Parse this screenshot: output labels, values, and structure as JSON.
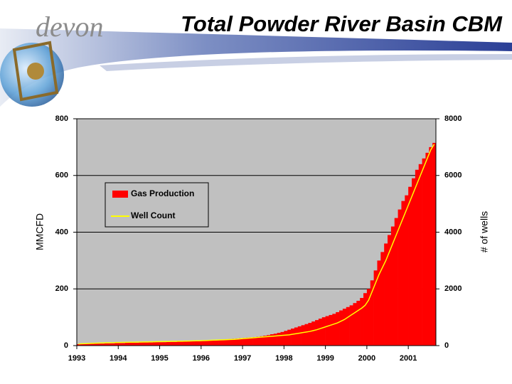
{
  "logo": "devon",
  "chart_data": {
    "type": "bar",
    "title": "Total Powder River Basin CBM",
    "ylabel": "MMCFD",
    "y2label": "# of wells",
    "categories": [
      "1993",
      null,
      null,
      null,
      null,
      null,
      null,
      null,
      null,
      null,
      null,
      null,
      "1994",
      null,
      null,
      null,
      null,
      null,
      null,
      null,
      null,
      null,
      null,
      null,
      "1995",
      null,
      null,
      null,
      null,
      null,
      null,
      null,
      null,
      null,
      null,
      null,
      "1996",
      null,
      null,
      null,
      null,
      null,
      null,
      null,
      null,
      null,
      null,
      null,
      "1997",
      null,
      null,
      null,
      null,
      null,
      null,
      null,
      null,
      null,
      null,
      null,
      "1998",
      null,
      null,
      null,
      null,
      null,
      null,
      null,
      null,
      null,
      null,
      null,
      "1999",
      null,
      null,
      null,
      null,
      null,
      null,
      null,
      null,
      null,
      null,
      null,
      "2000",
      null,
      null,
      null,
      null,
      null,
      null,
      null,
      null,
      null,
      null,
      null,
      "2001",
      null,
      null,
      null,
      null,
      null,
      null,
      null
    ],
    "series": [
      {
        "name": "Gas Production",
        "color": "#ff0000",
        "type": "bar",
        "values": [
          5,
          5,
          6,
          6,
          6,
          7,
          7,
          7,
          8,
          8,
          8,
          9,
          9,
          9,
          10,
          10,
          10,
          10,
          11,
          11,
          11,
          11,
          12,
          12,
          12,
          12,
          13,
          13,
          13,
          14,
          14,
          14,
          15,
          15,
          16,
          16,
          17,
          18,
          18,
          19,
          19,
          20,
          21,
          22,
          23,
          24,
          25,
          26,
          27,
          28,
          29,
          30,
          31,
          33,
          35,
          37,
          40,
          42,
          45,
          48,
          52,
          56,
          60,
          64,
          68,
          72,
          76,
          80,
          85,
          90,
          95,
          100,
          104,
          108,
          112,
          118,
          124,
          130,
          136,
          142,
          150,
          158,
          168,
          185,
          200,
          230,
          265,
          300,
          330,
          360,
          390,
          420,
          450,
          480,
          510,
          530,
          560,
          590,
          620,
          640,
          660,
          680,
          700,
          715
        ]
      },
      {
        "name": "Well Count",
        "color": "#ffff00",
        "type": "line",
        "axis": "y2",
        "values": [
          60,
          65,
          70,
          75,
          80,
          85,
          90,
          95,
          100,
          100,
          105,
          110,
          110,
          115,
          115,
          120,
          120,
          125,
          125,
          130,
          130,
          135,
          135,
          140,
          140,
          145,
          145,
          150,
          150,
          155,
          155,
          160,
          160,
          165,
          170,
          170,
          175,
          180,
          185,
          190,
          195,
          200,
          205,
          210,
          215,
          220,
          230,
          240,
          250,
          260,
          270,
          280,
          290,
          300,
          310,
          320,
          330,
          340,
          350,
          360,
          370,
          380,
          400,
          420,
          440,
          460,
          480,
          500,
          530,
          560,
          600,
          640,
          680,
          720,
          760,
          800,
          860,
          920,
          1000,
          1080,
          1160,
          1240,
          1320,
          1420,
          1600,
          1900,
          2200,
          2500,
          2750,
          3000,
          3300,
          3600,
          3900,
          4200,
          4500,
          4800,
          5100,
          5400,
          5700,
          6000,
          6300,
          6600,
          6900,
          7100
        ]
      }
    ],
    "ylim": [
      0,
      800
    ],
    "yticks": [
      0,
      200,
      400,
      600,
      800
    ],
    "y2lim": [
      0,
      8000
    ],
    "y2ticks": [
      0,
      2000,
      4000,
      6000,
      8000
    ],
    "grid": true,
    "plot_background": "#c0c0c0"
  }
}
